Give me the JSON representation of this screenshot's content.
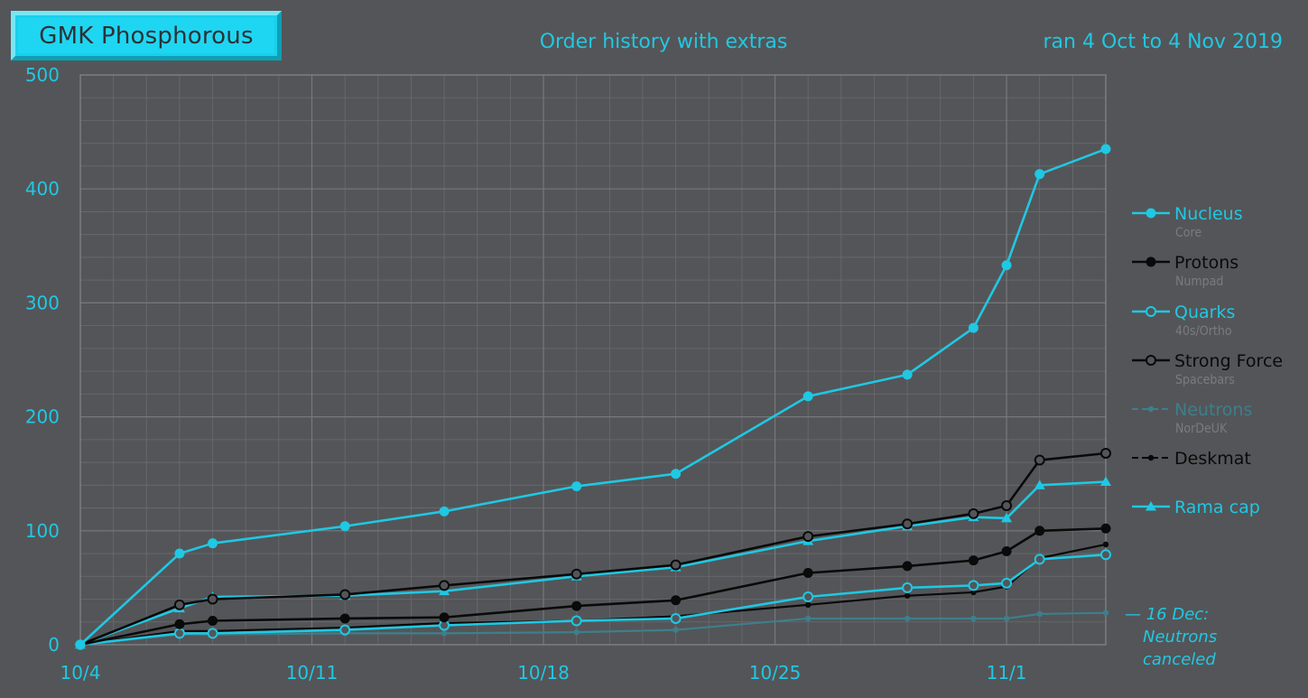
{
  "badge": "GMK Phosphorous",
  "chart_data": {
    "type": "line",
    "title": "Order history with extras",
    "subtitle": "ran 4 Oct to 4 Nov 2019",
    "xlabel": "",
    "ylabel": "",
    "x_ticks": [
      "10/4",
      "10/11",
      "10/18",
      "10/25",
      "11/1"
    ],
    "x_range": [
      "2019-10-04",
      "2019-11-04"
    ],
    "ylim": [
      0,
      500
    ],
    "y_ticks": [
      0,
      100,
      200,
      300,
      400,
      500
    ],
    "grid": true,
    "legend_position": "right",
    "series": [
      {
        "name": "Nucleus",
        "sublabel": "Core",
        "color": "#1fc8e3",
        "marker": "filled-circle",
        "line": "solid",
        "points": [
          [
            "2019-10-04",
            0
          ],
          [
            "2019-10-07",
            80
          ],
          [
            "2019-10-08",
            89
          ],
          [
            "2019-10-12",
            104
          ],
          [
            "2019-10-15",
            117
          ],
          [
            "2019-10-19",
            139
          ],
          [
            "2019-10-22",
            150
          ],
          [
            "2019-10-26",
            218
          ],
          [
            "2019-10-29",
            237
          ],
          [
            "2019-10-31",
            278
          ],
          [
            "2019-11-01",
            333
          ],
          [
            "2019-11-02",
            413
          ],
          [
            "2019-11-04",
            435
          ]
        ]
      },
      {
        "name": "Protons",
        "sublabel": "Numpad",
        "color": "#0a0a0a",
        "marker": "filled-circle",
        "line": "solid",
        "points": [
          [
            "2019-10-04",
            0
          ],
          [
            "2019-10-07",
            18
          ],
          [
            "2019-10-08",
            21
          ],
          [
            "2019-10-12",
            23
          ],
          [
            "2019-10-15",
            24
          ],
          [
            "2019-10-19",
            34
          ],
          [
            "2019-10-22",
            39
          ],
          [
            "2019-10-26",
            63
          ],
          [
            "2019-10-29",
            69
          ],
          [
            "2019-10-31",
            74
          ],
          [
            "2019-11-01",
            82
          ],
          [
            "2019-11-02",
            100
          ],
          [
            "2019-11-04",
            102
          ]
        ]
      },
      {
        "name": "Quarks",
        "sublabel": "40s/Ortho",
        "color": "#1fc8e3",
        "marker": "open-circle",
        "line": "solid",
        "points": [
          [
            "2019-10-04",
            0
          ],
          [
            "2019-10-07",
            10
          ],
          [
            "2019-10-08",
            10
          ],
          [
            "2019-10-12",
            13
          ],
          [
            "2019-10-15",
            17
          ],
          [
            "2019-10-19",
            21
          ],
          [
            "2019-10-22",
            23
          ],
          [
            "2019-10-26",
            42
          ],
          [
            "2019-10-29",
            50
          ],
          [
            "2019-10-31",
            52
          ],
          [
            "2019-11-01",
            54
          ],
          [
            "2019-11-02",
            75
          ],
          [
            "2019-11-04",
            79
          ]
        ]
      },
      {
        "name": "Strong Force",
        "sublabel": "Spacebars",
        "color": "#0a0a0a",
        "marker": "open-circle",
        "line": "solid",
        "points": [
          [
            "2019-10-04",
            0
          ],
          [
            "2019-10-07",
            35
          ],
          [
            "2019-10-08",
            40
          ],
          [
            "2019-10-12",
            44
          ],
          [
            "2019-10-15",
            52
          ],
          [
            "2019-10-19",
            62
          ],
          [
            "2019-10-22",
            70
          ],
          [
            "2019-10-26",
            95
          ],
          [
            "2019-10-29",
            106
          ],
          [
            "2019-10-31",
            115
          ],
          [
            "2019-11-01",
            122
          ],
          [
            "2019-11-02",
            162
          ],
          [
            "2019-11-04",
            168
          ]
        ]
      },
      {
        "name": "Neutrons",
        "sublabel": "NorDeUK",
        "color": "#3d7f8c",
        "marker": "small-dot",
        "line": "dashed",
        "points": [
          [
            "2019-10-04",
            0
          ],
          [
            "2019-10-07",
            9
          ],
          [
            "2019-10-08",
            9
          ],
          [
            "2019-10-12",
            10
          ],
          [
            "2019-10-15",
            10
          ],
          [
            "2019-10-19",
            11
          ],
          [
            "2019-10-22",
            13
          ],
          [
            "2019-10-26",
            23
          ],
          [
            "2019-10-29",
            23
          ],
          [
            "2019-10-31",
            23
          ],
          [
            "2019-11-01",
            23
          ],
          [
            "2019-11-02",
            27
          ],
          [
            "2019-11-04",
            28
          ]
        ]
      },
      {
        "name": "Deskmat",
        "sublabel": "",
        "color": "#0a0a0a",
        "marker": "small-dot",
        "line": "dashed",
        "points": [
          [
            "2019-10-04",
            0
          ],
          [
            "2019-10-07",
            12
          ],
          [
            "2019-10-08",
            12
          ],
          [
            "2019-10-12",
            15
          ],
          [
            "2019-10-15",
            19
          ],
          [
            "2019-10-19",
            21
          ],
          [
            "2019-10-22",
            25
          ],
          [
            "2019-10-26",
            35
          ],
          [
            "2019-10-29",
            43
          ],
          [
            "2019-10-31",
            46
          ],
          [
            "2019-11-01",
            51
          ],
          [
            "2019-11-02",
            76
          ],
          [
            "2019-11-04",
            88
          ]
        ]
      },
      {
        "name": "Rama cap",
        "sublabel": "",
        "color": "#1fc8e3",
        "marker": "triangle",
        "line": "solid",
        "points": [
          [
            "2019-10-04",
            0
          ],
          [
            "2019-10-07",
            32
          ],
          [
            "2019-10-08",
            42
          ],
          [
            "2019-10-12",
            43
          ],
          [
            "2019-10-15",
            47
          ],
          [
            "2019-10-19",
            60
          ],
          [
            "2019-10-22",
            68
          ],
          [
            "2019-10-26",
            91
          ],
          [
            "2019-10-29",
            104
          ],
          [
            "2019-10-31",
            112
          ],
          [
            "2019-11-01",
            111
          ],
          [
            "2019-11-02",
            140
          ],
          [
            "2019-11-04",
            143
          ]
        ]
      }
    ],
    "annotation": {
      "lines": [
        "— 16 Dec:",
        "Neutrons",
        "canceled"
      ],
      "color": "#22c7e2"
    }
  },
  "colors": {
    "background": "#545558",
    "grid": "#6a6b70",
    "axis": "#85878b",
    "accent": "#1fd6f2",
    "tick_text": "#22c7e2"
  }
}
